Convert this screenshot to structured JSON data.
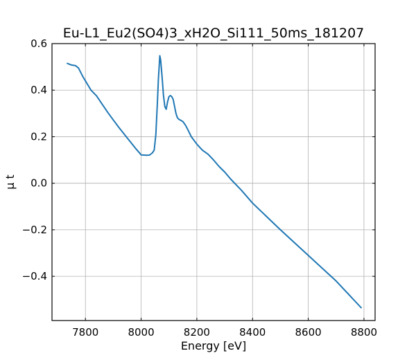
{
  "chart_data": {
    "type": "line",
    "title": "Eu-L1_Eu2(SO4)3_xH2O_Si111_50ms_181207",
    "xlabel": "Energy [eV]",
    "ylabel": "μ t",
    "xlim": [
      7680,
      8840
    ],
    "ylim": [
      -0.59,
      0.6
    ],
    "xticks": [
      7800,
      8000,
      8200,
      8400,
      8600,
      8800
    ],
    "xtick_labels": [
      "7800",
      "8000",
      "8200",
      "8400",
      "8600",
      "8800"
    ],
    "yticks": [
      -0.4,
      -0.2,
      0.0,
      0.2,
      0.4,
      0.6
    ],
    "ytick_labels": [
      "−0.4",
      "−0.2",
      "0.0",
      "0.2",
      "0.4",
      "0.6"
    ],
    "grid": true,
    "ticks_direction": "in",
    "color": "#1f77b4",
    "series": [
      {
        "x": [
          7735,
          7750,
          7765,
          7775,
          7790,
          7800,
          7820,
          7840,
          7860,
          7880,
          7900,
          7920,
          7940,
          7960,
          7980,
          8000,
          8020,
          8030,
          8040,
          8047,
          8053,
          8058,
          8062,
          8067,
          8070,
          8075,
          8080,
          8085,
          8090,
          8095,
          8100,
          8105,
          8110,
          8115,
          8120,
          8125,
          8130,
          8135,
          8140,
          8150,
          8160,
          8170,
          8180,
          8200,
          8220,
          8240,
          8260,
          8280,
          8300,
          8320,
          8340,
          8360,
          8400,
          8500,
          8600,
          8700,
          8790
        ],
        "y": [
          0.515,
          0.508,
          0.505,
          0.495,
          0.46,
          0.44,
          0.4,
          0.375,
          0.34,
          0.305,
          0.272,
          0.24,
          0.21,
          0.18,
          0.15,
          0.122,
          0.12,
          0.121,
          0.13,
          0.142,
          0.21,
          0.34,
          0.45,
          0.548,
          0.53,
          0.46,
          0.38,
          0.33,
          0.318,
          0.35,
          0.372,
          0.377,
          0.372,
          0.36,
          0.33,
          0.3,
          0.282,
          0.275,
          0.272,
          0.265,
          0.248,
          0.225,
          0.2,
          0.168,
          0.142,
          0.125,
          0.1,
          0.072,
          0.048,
          0.02,
          -0.005,
          -0.03,
          -0.085,
          -0.2,
          -0.31,
          -0.42,
          -0.535
        ]
      }
    ]
  }
}
